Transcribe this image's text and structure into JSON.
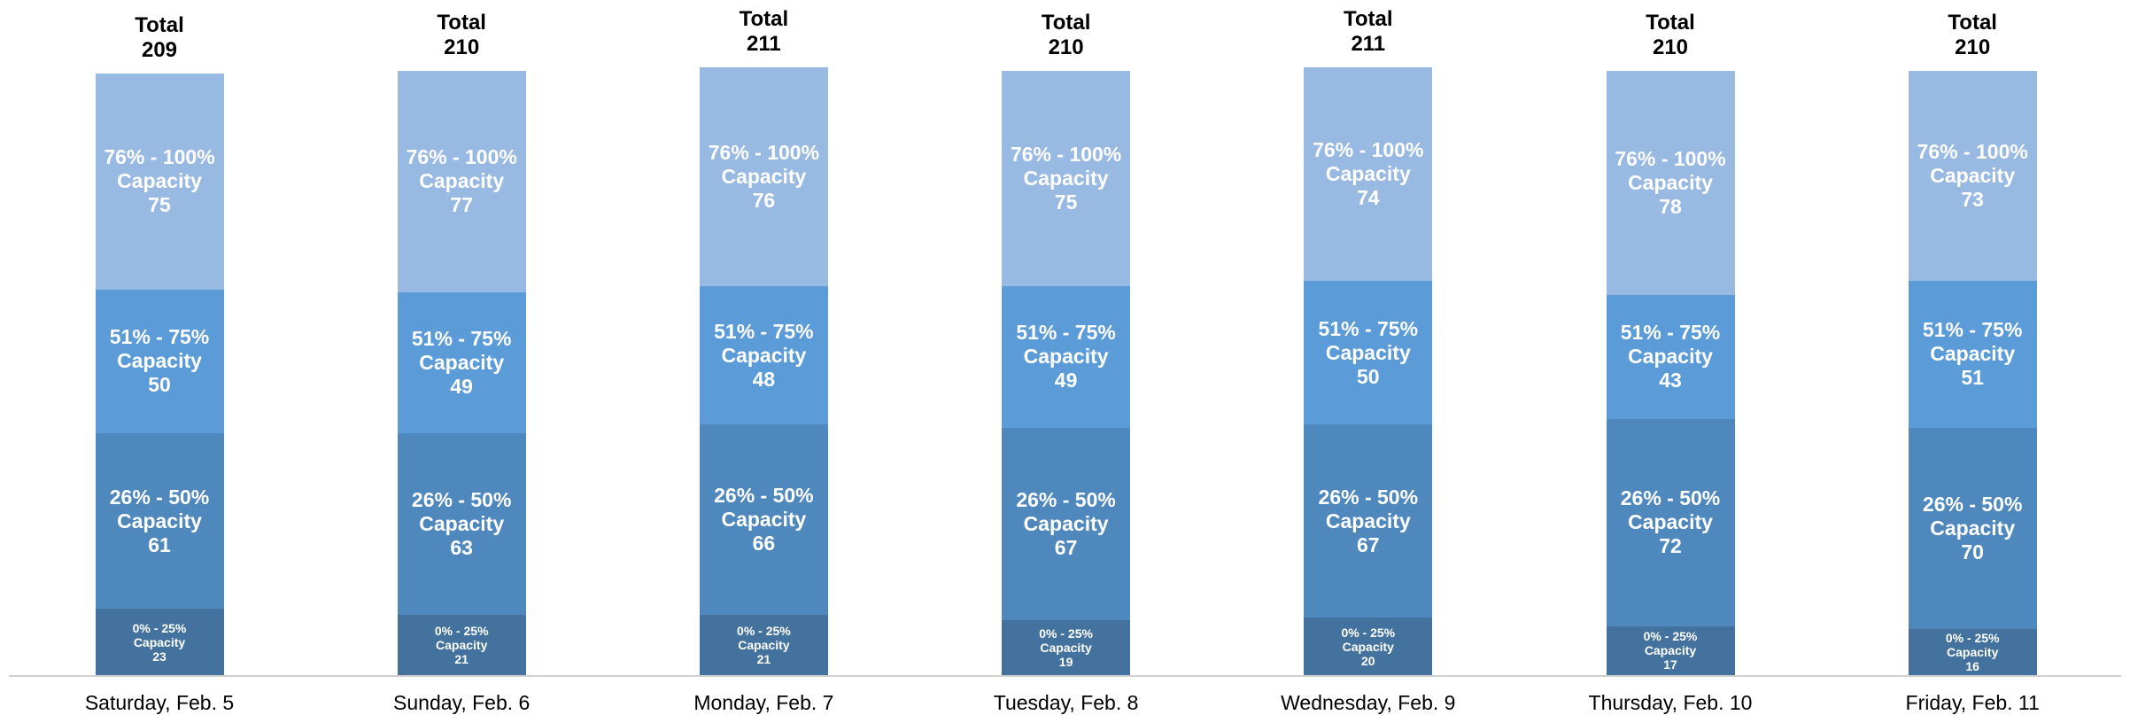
{
  "chart_data": {
    "type": "stacked_bar",
    "categories": [
      "Saturday, Feb. 5",
      "Sunday, Feb. 6",
      "Monday, Feb. 7",
      "Tuesday, Feb. 8",
      "Wednesday, Feb. 9",
      "Thursday, Feb. 10",
      "Friday, Feb. 11"
    ],
    "series": [
      {
        "name": "0% - 25% Capacity",
        "color": "#44729f",
        "values": [
          23,
          21,
          21,
          19,
          20,
          17,
          16
        ]
      },
      {
        "name": "26% - 50% Capacity",
        "color": "#4f88bd",
        "values": [
          61,
          63,
          66,
          67,
          67,
          72,
          70
        ]
      },
      {
        "name": "51% - 75% Capacity",
        "color": "#5b9bd7",
        "values": [
          50,
          49,
          48,
          49,
          50,
          43,
          51
        ]
      },
      {
        "name": "76% - 100% Capacity",
        "color": "#98b9e1",
        "values": [
          75,
          77,
          76,
          75,
          74,
          78,
          73
        ]
      }
    ],
    "total_label": "Total",
    "totals": [
      209,
      210,
      211,
      210,
      211,
      210,
      210
    ]
  }
}
